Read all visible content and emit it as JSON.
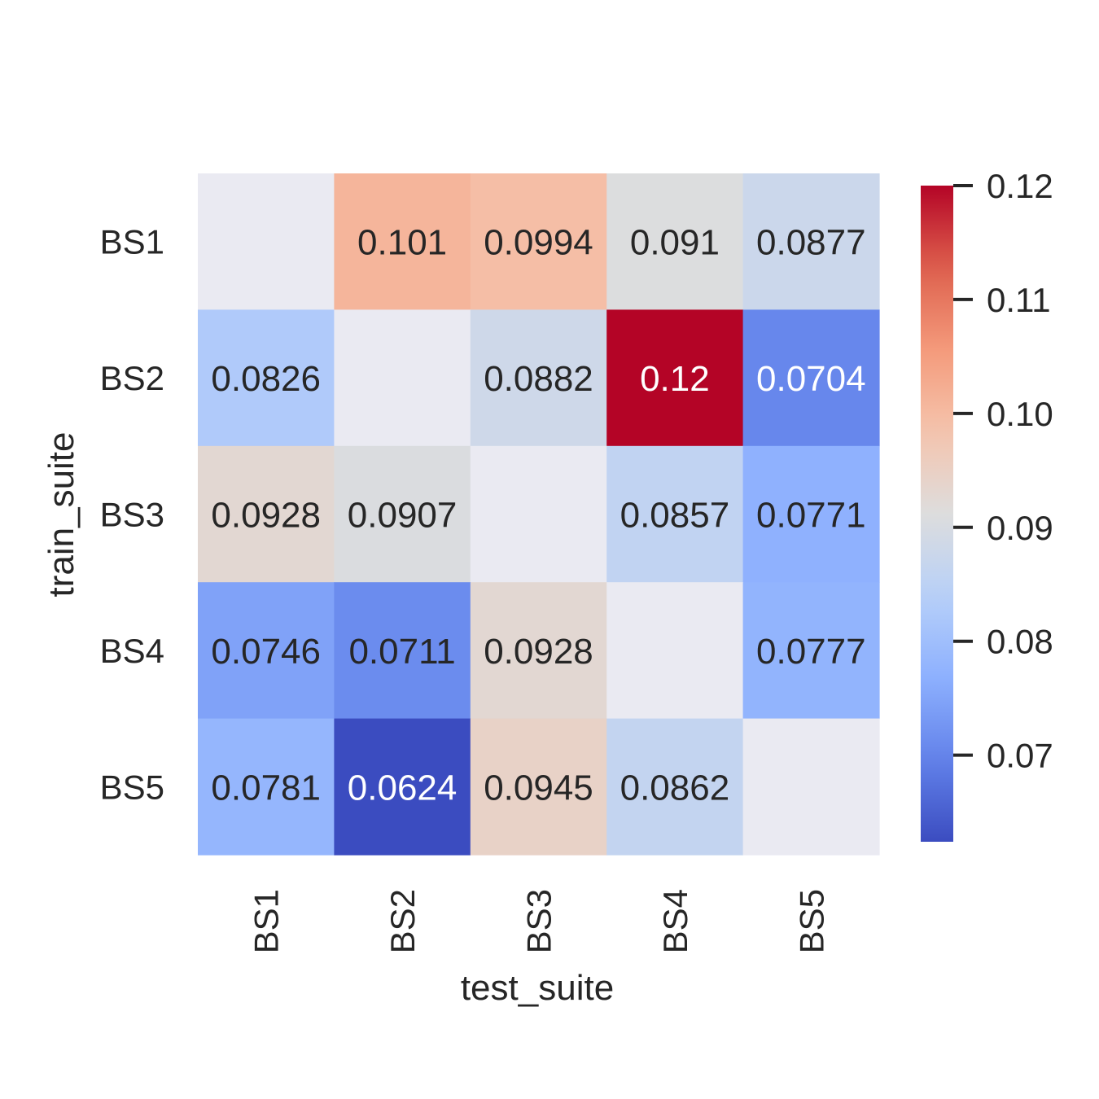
{
  "chart_data": {
    "type": "heatmap",
    "title": "",
    "xlabel": "test_suite",
    "ylabel": "train_suite",
    "x_categories": [
      "BS1",
      "BS2",
      "BS3",
      "BS4",
      "BS5"
    ],
    "y_categories": [
      "BS1",
      "BS2",
      "BS3",
      "BS4",
      "BS5"
    ],
    "values": [
      [
        null,
        0.101,
        0.0994,
        0.091,
        0.0877
      ],
      [
        0.0826,
        null,
        0.0882,
        0.12,
        0.0704
      ],
      [
        0.0928,
        0.0907,
        null,
        0.0857,
        0.0771
      ],
      [
        0.0746,
        0.0711,
        0.0928,
        null,
        0.0777
      ],
      [
        0.0781,
        0.0624,
        0.0945,
        0.0862,
        null
      ]
    ],
    "labels": [
      [
        "",
        "0.101",
        "0.0994",
        "0.091",
        "0.0877"
      ],
      [
        "0.0826",
        "",
        "0.0882",
        "0.12",
        "0.0704"
      ],
      [
        "0.0928",
        "0.0907",
        "",
        "0.0857",
        "0.0771"
      ],
      [
        "0.0746",
        "0.0711",
        "0.0928",
        "",
        "0.0777"
      ],
      [
        "0.0781",
        "0.0624",
        "0.0945",
        "0.0862",
        ""
      ]
    ],
    "colormap": "coolwarm",
    "vmin": 0.0624,
    "vmax": 0.12,
    "colorbar_ticks": [
      0.12,
      0.11,
      0.1,
      0.09,
      0.08,
      0.07
    ],
    "colorbar_tick_labels": [
      "0.12",
      "0.11",
      "0.10",
      "0.09",
      "0.08",
      "0.07"
    ],
    "missing_cell_color": "#eaeaf2",
    "dark_text_color": "#262626",
    "light_text_color": "#ffffff",
    "grid": false
  }
}
